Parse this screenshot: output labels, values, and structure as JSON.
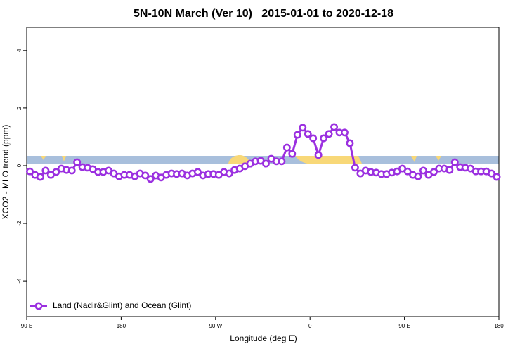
{
  "chart_data": {
    "type": "line",
    "title": "5N-10N March (Ver 10)   2015-01-01 to 2020-12-18",
    "x_label": "Longitude (deg E)",
    "y_label": "XCO2 - MLO trend (ppm)",
    "x": [
      93,
      98,
      103,
      108,
      113,
      118,
      123,
      128,
      133,
      138,
      143,
      148,
      153,
      158,
      163,
      168,
      173,
      178,
      183,
      188,
      193,
      198,
      203,
      208,
      213,
      218,
      223,
      228,
      233,
      238,
      243,
      248,
      253,
      258,
      263,
      268,
      273,
      278,
      283,
      288,
      293,
      298,
      303,
      308,
      313,
      318,
      323,
      328,
      333,
      338,
      343,
      348,
      353,
      358,
      363,
      368,
      373,
      378,
      383,
      388,
      393,
      398,
      403,
      408,
      413,
      418,
      423,
      428,
      433,
      438,
      443,
      448,
      453,
      458,
      463,
      468,
      473,
      478,
      483,
      488,
      493,
      498,
      503,
      508,
      513,
      518,
      523,
      528,
      533,
      538
    ],
    "series": [
      {
        "name": "Land (Nadir&Glint) and Ocean (Glint)",
        "color": "#9b30e0",
        "values": [
          -0.2,
          -0.32,
          -0.39,
          -0.17,
          -0.32,
          -0.22,
          -0.1,
          -0.15,
          -0.17,
          0.12,
          -0.05,
          -0.07,
          -0.12,
          -0.22,
          -0.22,
          -0.17,
          -0.27,
          -0.37,
          -0.32,
          -0.32,
          -0.37,
          -0.27,
          -0.34,
          -0.46,
          -0.34,
          -0.41,
          -0.32,
          -0.27,
          -0.29,
          -0.27,
          -0.34,
          -0.27,
          -0.22,
          -0.34,
          -0.29,
          -0.29,
          -0.32,
          -0.22,
          -0.27,
          -0.15,
          -0.1,
          -0.02,
          0.07,
          0.15,
          0.17,
          0.07,
          0.24,
          0.15,
          0.15,
          0.63,
          0.41,
          1.07,
          1.32,
          1.1,
          0.95,
          0.37,
          0.95,
          1.1,
          1.34,
          1.15,
          1.15,
          0.78,
          -0.07,
          -0.27,
          -0.17,
          -0.22,
          -0.24,
          -0.29,
          -0.29,
          -0.24,
          -0.2,
          -0.1,
          -0.2,
          -0.32,
          -0.37,
          -0.17,
          -0.32,
          -0.22,
          -0.1,
          -0.1,
          -0.15,
          0.12,
          -0.05,
          -0.07,
          -0.1,
          -0.2,
          -0.2,
          -0.2,
          -0.27,
          -0.39
        ]
      }
    ],
    "xlim": [
      90,
      540
    ],
    "xticks": [
      {
        "value": 90,
        "label": "90 E"
      },
      180,
      {
        "value": 270,
        "label": "90 W"
      },
      {
        "value": 360,
        "label": "0"
      },
      {
        "value": 450,
        "label": "90 E"
      },
      {
        "value": 540,
        "label": "180"
      }
    ],
    "ylim": [
      -5.24,
      4.8
    ],
    "yticks": [
      -4,
      -2,
      0,
      2,
      4
    ],
    "legend": "bottom-left"
  }
}
